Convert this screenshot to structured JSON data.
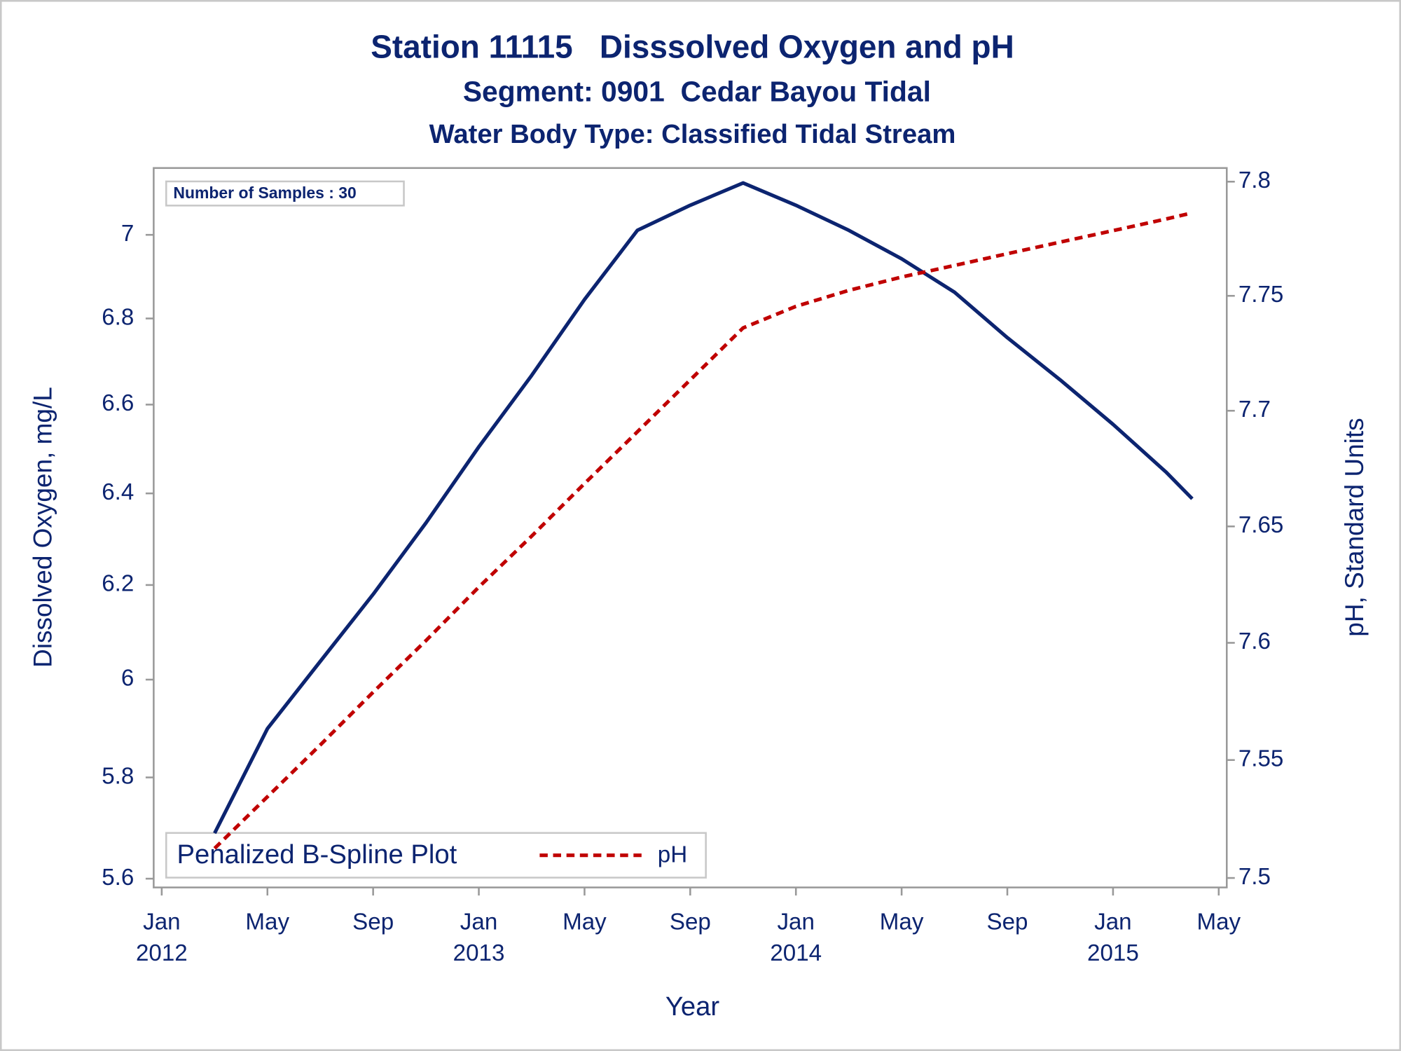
{
  "chart_data": {
    "type": "line",
    "title": "Station 11115   Disssolved Oxygen and pH",
    "subtitle": "Segment: 0901  Cedar Bayou Tidal",
    "subtitle2": "Water Body Type: Classified Tidal Stream",
    "annotation": "Number of Samples : 30",
    "x_label": "Year",
    "y_label": "Dissolved Oxygen, mg/L",
    "y2_label": "pH, Standard Units",
    "legend_title": "Penalized B-Spline Plot",
    "legend_position": "lower left",
    "log_scale": true,
    "y2_log_scale": true,
    "x": [
      "2012-03",
      "2012-05",
      "2012-07",
      "2012-09",
      "2012-11",
      "2013-01",
      "2013-03",
      "2013-05",
      "2013-07",
      "2013-09",
      "2013-11",
      "2014-01",
      "2014-03",
      "2014-05",
      "2014-07",
      "2014-09",
      "2014-11",
      "2015-01",
      "2015-03",
      "2015-04"
    ],
    "series": [
      {
        "color": "#0c2470",
        "style": "solid",
        "values": [
          5.689,
          5.899,
          6.038,
          6.18,
          6.335,
          6.504,
          6.667,
          6.845,
          7.011,
          7.072,
          7.127,
          7.072,
          7.011,
          6.942,
          6.862,
          6.755,
          6.657,
          6.555,
          6.448,
          6.388
        ]
      },
      {
        "name": "pH",
        "color": "#c00000",
        "style": "dashed",
        "axis": "y2",
        "values": [
          7.5125,
          7.5344,
          7.5564,
          7.5789,
          7.601,
          7.6239,
          7.6458,
          7.6685,
          7.6909,
          7.7134,
          7.736,
          7.7454,
          7.7524,
          7.7582,
          7.7633,
          7.7684,
          7.7735,
          7.7785,
          7.7836,
          7.7863
        ]
      }
    ],
    "xlim": [
      "2012-01",
      "2015-05"
    ],
    "xticks": [
      {
        "value": "2012-01",
        "label": "Jan",
        "sublabel": "2012"
      },
      {
        "value": "2012-05",
        "label": "May"
      },
      {
        "value": "2012-09",
        "label": "Sep"
      },
      {
        "value": "2013-01",
        "label": "Jan",
        "sublabel": "2013"
      },
      {
        "value": "2013-05",
        "label": "May"
      },
      {
        "value": "2013-09",
        "label": "Sep"
      },
      {
        "value": "2014-01",
        "label": "Jan",
        "sublabel": "2014"
      },
      {
        "value": "2014-05",
        "label": "May"
      },
      {
        "value": "2014-09",
        "label": "Sep"
      },
      {
        "value": "2015-01",
        "label": "Jan",
        "sublabel": "2015"
      },
      {
        "value": "2015-05",
        "label": "May"
      }
    ],
    "ylim": [
      5.583,
      7.164
    ],
    "yticks": [
      5.6,
      5.8,
      6,
      6.2,
      6.4,
      6.6,
      6.8,
      7
    ],
    "y2lim": [
      7.496,
      7.806
    ],
    "y2ticks": [
      7.5,
      7.55,
      7.6,
      7.65,
      7.7,
      7.75,
      7.8
    ]
  }
}
